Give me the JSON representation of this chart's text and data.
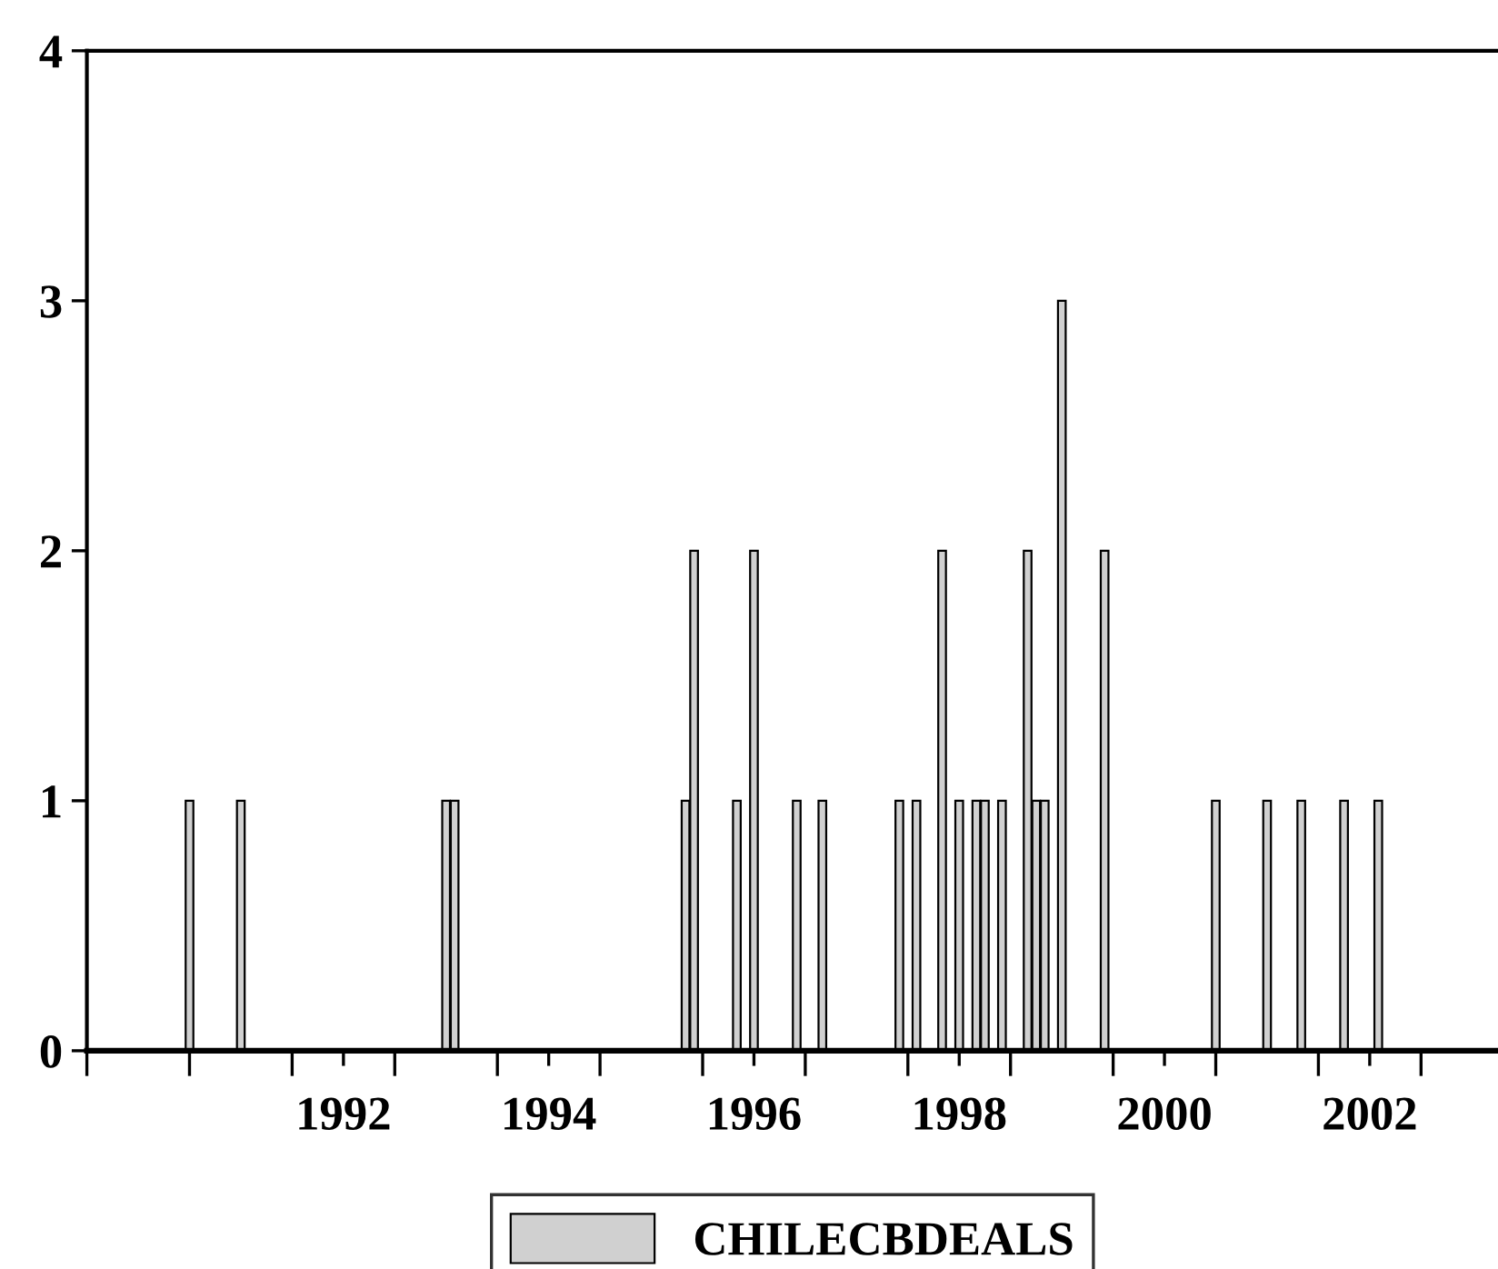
{
  "chart_data": {
    "type": "bar",
    "x": [
      "1991-01",
      "1991-07",
      "1993-07",
      "1993-08",
      "1995-11",
      "1995-12",
      "1996-05",
      "1996-07",
      "1996-12",
      "1997-03",
      "1997-12",
      "1998-02",
      "1998-05",
      "1998-07",
      "1998-09",
      "1998-10",
      "1998-12",
      "1999-03",
      "1999-04",
      "1999-05",
      "1999-07",
      "1999-12",
      "2001-01",
      "2001-07",
      "2001-11",
      "2002-04",
      "2002-08"
    ],
    "series": [
      {
        "name": "CHILECBDEALS",
        "color": "#d0d0d0",
        "values": [
          1,
          1,
          1,
          1,
          1,
          2,
          1,
          2,
          1,
          1,
          1,
          1,
          2,
          1,
          1,
          1,
          1,
          2,
          1,
          1,
          3,
          2,
          1,
          1,
          1,
          1,
          1
        ]
      }
    ],
    "xlim": [
      "1990-01",
      "2003-10"
    ],
    "xticks": [
      {
        "value": "1990-01",
        "label": null
      },
      {
        "value": "1991-01",
        "label": null
      },
      {
        "value": "1992-01",
        "label": null
      },
      {
        "value": "1992-07",
        "label": "1992"
      },
      {
        "value": "1993-01",
        "label": null
      },
      {
        "value": "1994-01",
        "label": null
      },
      {
        "value": "1994-07",
        "label": "1994"
      },
      {
        "value": "1995-01",
        "label": null
      },
      {
        "value": "1996-01",
        "label": null
      },
      {
        "value": "1996-07",
        "label": "1996"
      },
      {
        "value": "1997-01",
        "label": null
      },
      {
        "value": "1998-01",
        "label": null
      },
      {
        "value": "1998-07",
        "label": "1998"
      },
      {
        "value": "1999-01",
        "label": null
      },
      {
        "value": "2000-01",
        "label": null
      },
      {
        "value": "2000-07",
        "label": "2000"
      },
      {
        "value": "2001-01",
        "label": null
      },
      {
        "value": "2002-01",
        "label": null
      },
      {
        "value": "2002-07",
        "label": "2002"
      },
      {
        "value": "2003-01",
        "label": null
      }
    ],
    "ylim": [
      0,
      4
    ],
    "yticks": [
      0,
      1,
      2,
      3,
      4
    ],
    "grid": false,
    "legend": "bottom"
  }
}
